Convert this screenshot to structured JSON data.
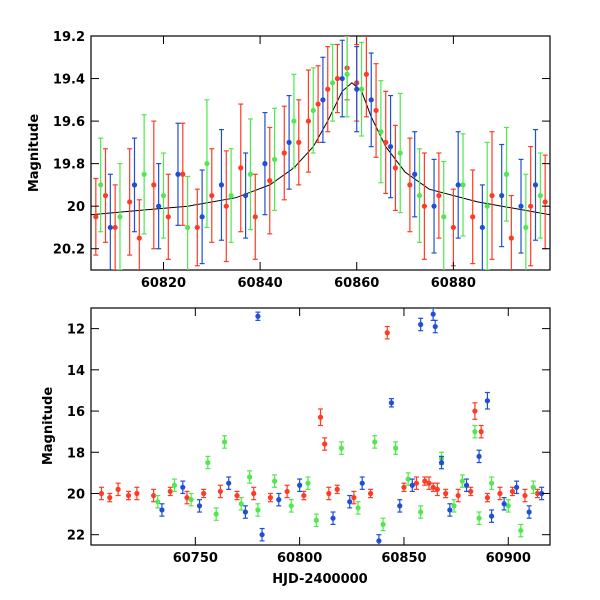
{
  "colors": {
    "blue": "#1f4fd8",
    "green": "#4fe84f",
    "red": "#ff3b24",
    "axis": "#000000",
    "background": "#ffffff"
  },
  "chart_data": [
    {
      "type": "scatter",
      "title": "",
      "xlabel": "",
      "ylabel": "Magnitude",
      "xlim": [
        60805,
        60900
      ],
      "ylim": [
        20.3,
        19.2
      ],
      "y_inverted": true,
      "x_ticks": [
        60820,
        60840,
        60860,
        60880
      ],
      "y_ticks": [
        19.2,
        19.4,
        19.6,
        19.8,
        20,
        20.2
      ],
      "x_tick_labels": [
        "60820",
        "60840",
        "60860",
        "60880"
      ],
      "y_tick_labels": [
        "19.2",
        "19.4",
        "19.6",
        "19.8",
        "20",
        "20.2"
      ],
      "model_curve": {
        "x": [
          60805,
          60815,
          60825,
          60835,
          60842,
          60847,
          60851,
          60854,
          60857,
          60859,
          60861,
          60863,
          60866,
          60870,
          60875,
          60885,
          60900
        ],
        "y": [
          20.04,
          20.02,
          20.0,
          19.96,
          19.9,
          19.82,
          19.72,
          19.6,
          19.46,
          19.42,
          19.46,
          19.58,
          19.72,
          19.84,
          19.92,
          19.98,
          20.04
        ]
      },
      "series": [
        {
          "color": "red",
          "x": [
            60806,
            60808,
            60810,
            60813,
            60815,
            60818,
            60821,
            60824,
            60827,
            60830,
            60833,
            60836,
            60839,
            60842,
            60845,
            60848,
            60850,
            60852,
            60854,
            60856,
            60858,
            60860,
            60862,
            60864,
            60866,
            60868,
            60871,
            60874,
            60877,
            60880,
            60884,
            60888,
            60892,
            60896,
            60899
          ],
          "y": [
            20.05,
            19.95,
            20.1,
            19.98,
            20.15,
            19.9,
            20.05,
            19.85,
            20.1,
            19.95,
            20.0,
            19.82,
            20.05,
            19.88,
            19.75,
            19.7,
            19.6,
            19.52,
            19.45,
            19.4,
            19.35,
            19.42,
            19.38,
            19.55,
            19.7,
            19.82,
            19.9,
            20.0,
            19.95,
            20.1,
            20.05,
            19.95,
            20.15,
            20.0,
            19.98
          ],
          "err": [
            0.18,
            0.22,
            0.2,
            0.25,
            0.18,
            0.3,
            0.2,
            0.24,
            0.18,
            0.22,
            0.26,
            0.3,
            0.2,
            0.25,
            0.22,
            0.2,
            0.24,
            0.18,
            0.2,
            0.16,
            0.15,
            0.18,
            0.2,
            0.22,
            0.24,
            0.2,
            0.22,
            0.25,
            0.2,
            0.18,
            0.22,
            0.3,
            0.2,
            0.28,
            0.22
          ]
        },
        {
          "color": "green",
          "x": [
            60807,
            60811,
            60816,
            60820,
            60825,
            60829,
            60834,
            60838,
            60843,
            60847,
            60851,
            60855,
            60858,
            60861,
            60865,
            60869,
            60873,
            60878,
            60882,
            60887,
            60891,
            60895,
            60898
          ],
          "y": [
            19.9,
            20.05,
            19.85,
            19.95,
            20.1,
            19.8,
            19.95,
            19.85,
            19.78,
            19.6,
            19.55,
            19.42,
            19.38,
            19.45,
            19.65,
            19.75,
            19.95,
            20.05,
            19.9,
            20.0,
            19.85,
            20.1,
            19.95
          ],
          "err": [
            0.22,
            0.25,
            0.28,
            0.2,
            0.24,
            0.3,
            0.22,
            0.26,
            0.24,
            0.22,
            0.2,
            0.18,
            0.2,
            0.22,
            0.24,
            0.28,
            0.22,
            0.26,
            0.24,
            0.3,
            0.22,
            0.25,
            0.2
          ]
        },
        {
          "color": "blue",
          "x": [
            60809,
            60814,
            60819,
            60823,
            60828,
            60832,
            60837,
            60841,
            60846,
            60853,
            60857,
            60860,
            60863,
            60867,
            60872,
            60876,
            60881,
            60886,
            60890,
            60894,
            60897
          ],
          "y": [
            20.1,
            19.9,
            20.0,
            19.85,
            20.05,
            19.9,
            19.95,
            19.8,
            19.7,
            19.5,
            19.4,
            19.45,
            19.5,
            19.72,
            19.85,
            20.0,
            19.9,
            20.1,
            19.95,
            20.0,
            19.9
          ],
          "err": [
            0.25,
            0.22,
            0.2,
            0.24,
            0.22,
            0.26,
            0.2,
            0.24,
            0.22,
            0.2,
            0.18,
            0.2,
            0.22,
            0.24,
            0.2,
            0.22,
            0.25,
            0.2,
            0.24,
            0.22,
            0.26
          ]
        }
      ]
    },
    {
      "type": "scatter",
      "title": "",
      "xlabel": "HJD-2400000",
      "ylabel": "Magnitude",
      "xlim": [
        60700,
        60920
      ],
      "ylim": [
        22.5,
        11
      ],
      "y_inverted": true,
      "x_ticks": [
        60750,
        60800,
        60850,
        60900
      ],
      "y_ticks": [
        12,
        14,
        16,
        18,
        20,
        22
      ],
      "x_tick_labels": [
        "60750",
        "60800",
        "60850",
        "60900"
      ],
      "y_tick_labels": [
        "12",
        "14",
        "16",
        "18",
        "20",
        "22"
      ],
      "series": [
        {
          "color": "red",
          "x": [
            60705,
            60709,
            60713,
            60718,
            60722,
            60730,
            60738,
            60746,
            60754,
            60762,
            60770,
            60778,
            60786,
            60794,
            60802,
            60810,
            60812,
            60814,
            60818,
            60826,
            60834,
            60842,
            60850,
            60856,
            60860,
            60862,
            60864,
            60866,
            60870,
            60876,
            60882,
            60884,
            60887,
            60890,
            60896,
            60902,
            60908,
            60914
          ],
          "y": [
            20.0,
            20.2,
            19.8,
            20.1,
            20.0,
            20.1,
            19.9,
            20.2,
            20.0,
            19.9,
            20.1,
            20.0,
            20.2,
            19.9,
            20.1,
            16.3,
            17.6,
            20.0,
            19.8,
            20.2,
            20.0,
            12.2,
            19.7,
            19.5,
            19.4,
            19.5,
            19.7,
            19.8,
            20.0,
            20.1,
            19.9,
            16.0,
            17.0,
            20.2,
            20.0,
            19.9,
            20.1,
            20.0
          ],
          "err": [
            0.3,
            0.2,
            0.3,
            0.2,
            0.3,
            0.3,
            0.2,
            0.3,
            0.2,
            0.3,
            0.2,
            0.3,
            0.2,
            0.3,
            0.2,
            0.4,
            0.3,
            0.3,
            0.2,
            0.3,
            0.2,
            0.3,
            0.2,
            0.3,
            0.2,
            0.3,
            0.2,
            0.3,
            0.2,
            0.3,
            0.2,
            0.4,
            0.3,
            0.2,
            0.3,
            0.2,
            0.3,
            0.2
          ]
        },
        {
          "color": "green",
          "x": [
            60732,
            60740,
            60748,
            60756,
            60760,
            60764,
            60772,
            60776,
            60780,
            60788,
            60796,
            60804,
            60808,
            60820,
            60828,
            60836,
            60840,
            60846,
            60852,
            60858,
            60868,
            60874,
            60878,
            60884,
            60886,
            60892,
            60900,
            60906,
            60912
          ],
          "y": [
            20.4,
            19.6,
            20.3,
            18.5,
            21.0,
            17.5,
            20.5,
            19.2,
            20.8,
            19.4,
            20.6,
            19.5,
            21.3,
            17.8,
            20.7,
            17.5,
            21.5,
            17.8,
            19.3,
            20.9,
            18.3,
            20.6,
            19.4,
            17.0,
            21.2,
            19.5,
            20.6,
            21.8,
            19.7
          ],
          "err": [
            0.3,
            0.3,
            0.3,
            0.3,
            0.3,
            0.3,
            0.3,
            0.3,
            0.3,
            0.3,
            0.3,
            0.3,
            0.3,
            0.3,
            0.3,
            0.3,
            0.3,
            0.3,
            0.3,
            0.3,
            0.3,
            0.3,
            0.3,
            0.3,
            0.3,
            0.3,
            0.3,
            0.3,
            0.3
          ]
        },
        {
          "color": "blue",
          "x": [
            60734,
            60744,
            60752,
            60766,
            60774,
            60780,
            60782,
            60790,
            60800,
            60816,
            60824,
            60830,
            60838,
            60844,
            60848,
            60854,
            60858,
            60864,
            60865,
            60868,
            60872,
            60880,
            60886,
            60890,
            60892,
            60898,
            60904,
            60910,
            60916
          ],
          "y": [
            20.8,
            19.7,
            20.6,
            19.5,
            20.9,
            11.4,
            22.0,
            20.3,
            19.6,
            21.2,
            20.4,
            19.5,
            22.3,
            15.6,
            20.6,
            19.6,
            11.8,
            11.3,
            11.9,
            18.5,
            20.8,
            19.6,
            18.2,
            15.5,
            21.1,
            20.5,
            19.7,
            20.9,
            20.0
          ],
          "err": [
            0.3,
            0.3,
            0.3,
            0.3,
            0.3,
            0.2,
            0.3,
            0.3,
            0.3,
            0.3,
            0.3,
            0.3,
            0.3,
            0.2,
            0.3,
            0.3,
            0.3,
            0.3,
            0.3,
            0.3,
            0.3,
            0.3,
            0.3,
            0.4,
            0.3,
            0.3,
            0.3,
            0.3,
            0.3
          ]
        }
      ]
    }
  ]
}
